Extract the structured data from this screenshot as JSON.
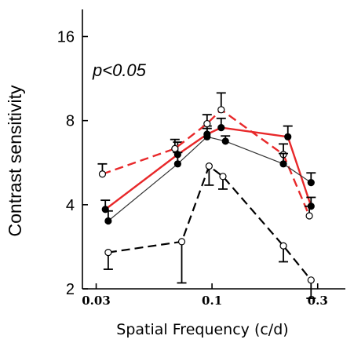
{
  "chart_data": {
    "type": "line",
    "xlabel": "Spatial Frequency (c/d)",
    "ylabel": "Contrast sensitivity",
    "annotation": "p<0.05",
    "x_scale": "log",
    "y_scale": "log2",
    "xlim": [
      0.026,
      0.4
    ],
    "ylim": [
      2,
      20
    ],
    "x_ticks": [
      0.03,
      0.1,
      0.3
    ],
    "x_tick_labels": [
      "0.03",
      "0.1",
      "0.3"
    ],
    "y_ticks": [
      2,
      4,
      8,
      16
    ],
    "y_tick_labels": [
      "2",
      "4",
      "8",
      "16"
    ],
    "grid": false,
    "colors": {
      "red": "#e8282a",
      "black": "#000000",
      "gray": "#333333"
    },
    "series": [
      {
        "color": "#e8282a",
        "dash": "solid",
        "marker": "filled",
        "x": [
          0.033,
          0.07,
          0.095,
          0.11,
          0.22,
          0.28
        ],
        "y": [
          3.85,
          6.05,
          7.15,
          7.55,
          7.0,
          3.95
        ],
        "err": [
          0.3,
          0.65,
          0.5,
          0.6,
          0.65,
          0.3
        ]
      },
      {
        "color": "#e8282a",
        "dash": "dashed",
        "marker": "open",
        "x": [
          0.032,
          0.068,
          0.095,
          0.11,
          0.21,
          0.275
        ],
        "y": [
          5.15,
          6.35,
          7.8,
          8.75,
          6.05,
          3.65
        ],
        "err": [
          0.45,
          0.5,
          0.6,
          1.3,
          0.55,
          0.3
        ]
      },
      {
        "color": "#333333",
        "dash": "solid",
        "marker": "filled",
        "x": [
          0.034,
          0.07,
          0.095,
          0.115,
          0.21,
          0.28
        ],
        "y": [
          3.5,
          5.6,
          7.0,
          6.75,
          5.6,
          4.8
        ],
        "err": [
          0.3,
          0.55,
          0.5,
          0.3,
          0.5,
          0.4
        ]
      },
      {
        "color": "#000000",
        "dash": "dashed",
        "marker": "open",
        "x": [
          0.034,
          0.073,
          0.097,
          0.112,
          0.21,
          0.28
        ],
        "y": [
          2.7,
          2.95,
          5.5,
          5.05,
          2.85,
          2.15
        ],
        "err": [
          0.35,
          0.85,
          0.8,
          0.5,
          0.35,
          0.3
        ]
      }
    ]
  }
}
